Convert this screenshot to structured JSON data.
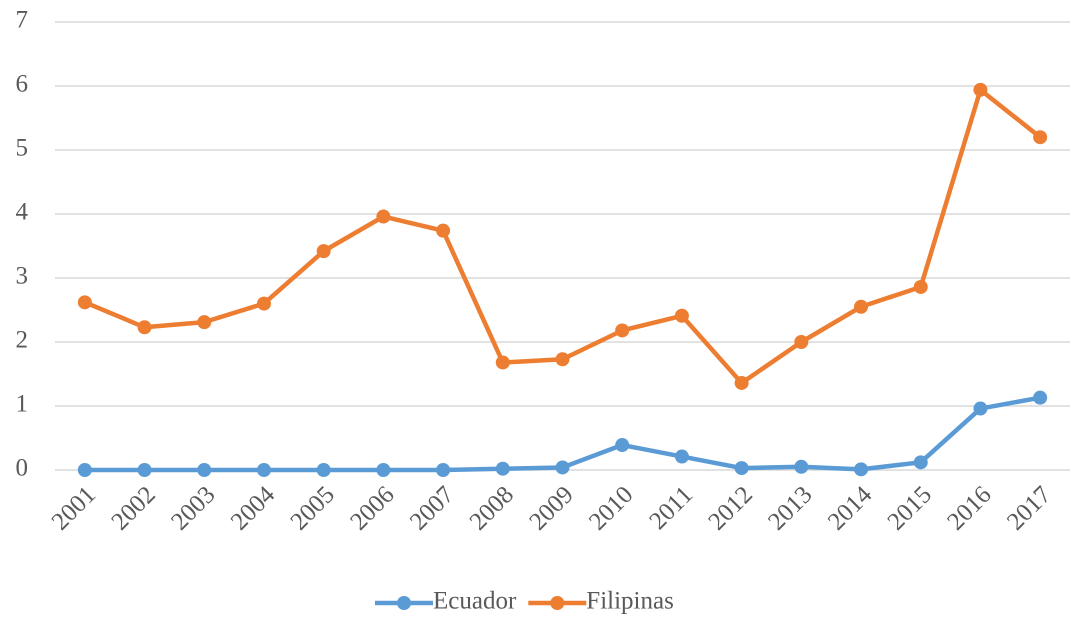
{
  "chart_data": {
    "type": "line",
    "categories": [
      "2001",
      "2002",
      "2003",
      "2004",
      "2005",
      "2006",
      "2007",
      "2008",
      "2009",
      "2010",
      "2011",
      "2012",
      "2013",
      "2014",
      "2015",
      "2016",
      "2017"
    ],
    "series": [
      {
        "name": "Ecuador",
        "color": "#5b9bd5",
        "values": [
          0,
          0,
          0,
          0,
          0,
          0,
          0,
          0.02,
          0.04,
          0.39,
          0.21,
          0.03,
          0.05,
          0.01,
          0.12,
          0.96,
          1.13
        ]
      },
      {
        "name": "Filipinas",
        "color": "#ed7d31",
        "values": [
          2.62,
          2.23,
          2.31,
          2.6,
          3.42,
          3.96,
          3.74,
          1.68,
          1.73,
          2.18,
          2.41,
          1.36,
          2.0,
          2.55,
          2.86,
          5.94,
          5.2
        ]
      }
    ],
    "ylim": [
      0,
      7
    ],
    "yticks": [
      0,
      1,
      2,
      3,
      4,
      5,
      6,
      7
    ],
    "grid": true,
    "legend": "bottom"
  }
}
